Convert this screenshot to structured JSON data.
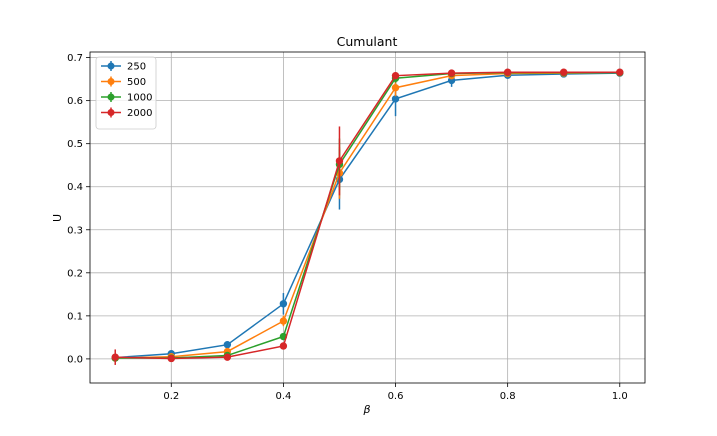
{
  "chart_data": {
    "type": "line",
    "title": "Cumulant",
    "xlabel": "β",
    "ylabel": "U",
    "xlim": [
      0.055,
      1.045
    ],
    "ylim": [
      -0.056,
      0.713
    ],
    "xticks": [
      0.2,
      0.4,
      0.6,
      0.8,
      1.0
    ],
    "xtick_labels": [
      "0.2",
      "0.4",
      "0.6",
      "0.8",
      "1.0"
    ],
    "yticks": [
      0.0,
      0.1,
      0.2,
      0.3,
      0.4,
      0.5,
      0.6,
      0.7
    ],
    "ytick_labels": [
      "0.0",
      "0.1",
      "0.2",
      "0.3",
      "0.4",
      "0.5",
      "0.6",
      "0.7"
    ],
    "grid": true,
    "legend_position": "top-left",
    "x": [
      0.1,
      0.2,
      0.3,
      0.4,
      0.5,
      0.6,
      0.7,
      0.8,
      0.9,
      1.0
    ],
    "series": [
      {
        "name": "250",
        "color": "#1f77b4",
        "values": [
          0.003,
          0.012,
          0.033,
          0.128,
          0.417,
          0.604,
          0.647,
          0.659,
          0.662,
          0.664
        ],
        "errors": [
          0.005,
          0.004,
          0.004,
          0.025,
          0.07,
          0.04,
          0.015,
          0.004,
          0.003,
          0.002
        ]
      },
      {
        "name": "500",
        "color": "#ff7f0e",
        "values": [
          0.002,
          0.005,
          0.017,
          0.088,
          0.432,
          0.63,
          0.658,
          0.663,
          0.664,
          0.665
        ],
        "errors": [
          0.004,
          0.003,
          0.003,
          0.012,
          0.06,
          0.02,
          0.008,
          0.003,
          0.002,
          0.001
        ]
      },
      {
        "name": "1000",
        "color": "#2ca02c",
        "values": [
          0.002,
          0.002,
          0.008,
          0.052,
          0.452,
          0.652,
          0.663,
          0.665,
          0.665,
          0.665
        ],
        "errors": [
          0.003,
          0.002,
          0.003,
          0.008,
          0.06,
          0.01,
          0.004,
          0.002,
          0.001,
          0.001
        ]
      },
      {
        "name": "2000",
        "color": "#d62728",
        "values": [
          0.004,
          0.001,
          0.004,
          0.03,
          0.46,
          0.658,
          0.664,
          0.666,
          0.666,
          0.666
        ],
        "errors": [
          0.018,
          0.002,
          0.002,
          0.004,
          0.08,
          0.008,
          0.003,
          0.002,
          0.001,
          0.001
        ]
      }
    ]
  }
}
